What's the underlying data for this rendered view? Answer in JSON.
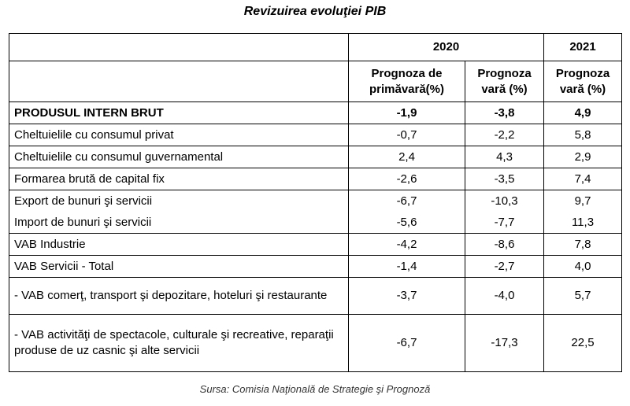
{
  "title": "Revizuirea evoluţiei PIB",
  "years": {
    "y2020": "2020",
    "y2021": "2021"
  },
  "headers": {
    "spring_2020_line1": "Prognoza de",
    "spring_2020_line2": "primăvară(%)",
    "summer_2020_line1": "Prognoza",
    "summer_2020_line2": "vară  (%)",
    "summer_2021_line1": "Prognoza",
    "summer_2021_line2": "vară  (%)"
  },
  "rows": [
    {
      "label": "PRODUSUL INTERN BRUT",
      "spring_2020": "-1,9",
      "summer_2020": "-3,8",
      "summer_2021": "4,9"
    },
    {
      "label": "Cheltuielile cu consumul privat",
      "spring_2020": "-0,7",
      "summer_2020": "-2,2",
      "summer_2021": "5,8"
    },
    {
      "label": "Cheltuielile cu consumul guvernamental",
      "spring_2020": "2,4",
      "summer_2020": "4,3",
      "summer_2021": "2,9"
    },
    {
      "label": "Formarea brută de capital fix",
      "spring_2020": "-2,6",
      "summer_2020": "-3,5",
      "summer_2021": "7,4"
    },
    {
      "label": "Export de bunuri şi servicii",
      "spring_2020": "-6,7",
      "summer_2020": "-10,3",
      "summer_2021": "9,7"
    },
    {
      "label": "Import de bunuri şi servicii",
      "spring_2020": "-5,6",
      "summer_2020": "-7,7",
      "summer_2021": "11,3"
    },
    {
      "label": "VAB Industrie",
      "spring_2020": "-4,2",
      "summer_2020": "-8,6",
      "summer_2021": "7,8"
    },
    {
      "label": "VAB Servicii - Total",
      "spring_2020": "-1,4",
      "summer_2020": "-2,7",
      "summer_2021": "4,0"
    },
    {
      "label": "- VAB comerţ, transport şi depozitare, hoteluri şi restaurante",
      "spring_2020": "-3,7",
      "summer_2020": "-4,0",
      "summer_2021": "5,7"
    },
    {
      "label": "- VAB activităţi de spectacole, culturale şi recreative, reparaţii produse de uz casnic şi alte servicii",
      "spring_2020": "-6,7",
      "summer_2020": "-17,3",
      "summer_2021": "22,5"
    }
  ],
  "source": "Sursa: Comisia Naţională de Strategie şi Prognoză"
}
